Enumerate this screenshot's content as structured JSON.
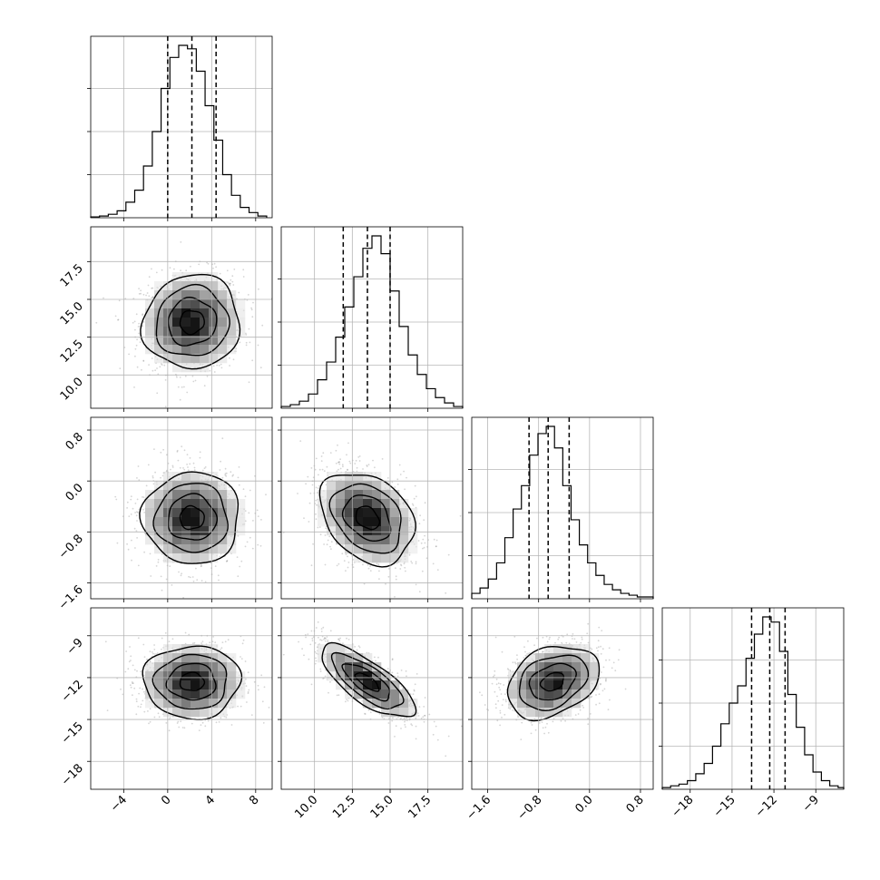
{
  "chart_data": {
    "type": "corner",
    "grid": true,
    "parameters": [
      {
        "index": 0,
        "range": [
          -7,
          9.5
        ],
        "ticks": [
          -4,
          0,
          4,
          8
        ],
        "tick_labels": [
          "−4",
          "0",
          "4",
          "8"
        ],
        "mean": 2.2,
        "sd": 2.2,
        "quantiles": [
          0.0,
          2.2,
          4.4
        ],
        "hist_bins_x": [
          -7,
          -6.2,
          -5.4,
          -4.6,
          -3.8,
          -3.0,
          -2.2,
          -1.4,
          -0.6,
          0.2,
          1.0,
          1.8,
          2.6,
          3.4,
          4.2,
          5.0,
          5.8,
          6.6,
          7.4,
          8.2,
          9.0
        ],
        "hist_counts": [
          0.5,
          1,
          2,
          4,
          9,
          16,
          30,
          50,
          75,
          93,
          100,
          98,
          85,
          65,
          45,
          25,
          13,
          6,
          3,
          1
        ]
      },
      {
        "index": 1,
        "range": [
          7.8,
          19.8
        ],
        "ticks": [
          10.0,
          12.5,
          15.0,
          17.5
        ],
        "tick_labels": [
          "10.0",
          "12.5",
          "15.0",
          "17.5"
        ],
        "mean": 13.5,
        "sd": 1.55,
        "quantiles": [
          11.9,
          13.5,
          15.0
        ],
        "hist_bins_x": [
          7.8,
          8.4,
          9.0,
          9.6,
          10.2,
          10.8,
          11.4,
          12.0,
          12.6,
          13.2,
          13.8,
          14.4,
          15.0,
          15.6,
          16.2,
          16.8,
          17.4,
          18.0,
          18.6,
          19.2,
          19.8
        ],
        "hist_counts": [
          1,
          2,
          4,
          8,
          16,
          26,
          40,
          57,
          74,
          90,
          97,
          87,
          66,
          46,
          30,
          19,
          11,
          6,
          3,
          1
        ]
      },
      {
        "index": 2,
        "range": [
          -1.85,
          1.0
        ],
        "ticks": [
          -1.6,
          -0.8,
          0.0,
          0.8
        ],
        "tick_labels": [
          "−1.6",
          "−0.8",
          "0.0",
          "0.8"
        ],
        "mean": -0.58,
        "sd": 0.36,
        "quantiles": [
          -0.95,
          -0.65,
          -0.32
        ],
        "hist_bins_x": [
          -1.85,
          -1.72,
          -1.59,
          -1.46,
          -1.33,
          -1.2,
          -1.07,
          -0.94,
          -0.81,
          -0.68,
          -0.55,
          -0.42,
          -0.29,
          -0.16,
          -0.03,
          0.1,
          0.23,
          0.36,
          0.49,
          0.62,
          0.75,
          0.88,
          1.0
        ],
        "hist_counts": [
          3,
          6,
          11,
          20,
          34,
          50,
          63,
          80,
          92,
          96,
          84,
          63,
          44,
          30,
          20,
          13,
          8,
          5,
          3,
          2,
          1,
          1
        ]
      },
      {
        "index": 3,
        "range": [
          -20,
          -7
        ],
        "ticks": [
          -18,
          -15,
          -12,
          -9
        ],
        "tick_labels": [
          "−18",
          "−15",
          "−12",
          "−9"
        ],
        "mean": -12.3,
        "sd": 1.3,
        "quantiles": [
          -13.6,
          -12.3,
          -11.2
        ],
        "hist_bins_x": [
          -20,
          -19.4,
          -18.8,
          -18.2,
          -17.6,
          -17.0,
          -16.4,
          -15.8,
          -15.2,
          -14.6,
          -14.0,
          -13.4,
          -12.8,
          -12.2,
          -11.6,
          -11.0,
          -10.4,
          -9.8,
          -9.2,
          -8.6,
          -8.0,
          -7.4,
          -7.0
        ],
        "hist_counts": [
          1,
          2,
          3,
          5,
          9,
          15,
          25,
          38,
          50,
          60,
          76,
          90,
          100,
          97,
          80,
          55,
          36,
          20,
          10,
          5,
          2,
          1
        ]
      }
    ],
    "pair_correlations": {
      "1_0": 0.05,
      "2_0": 0.0,
      "2_1": -0.3,
      "3_0": 0.0,
      "3_1": -0.75,
      "3_2": 0.3
    }
  }
}
